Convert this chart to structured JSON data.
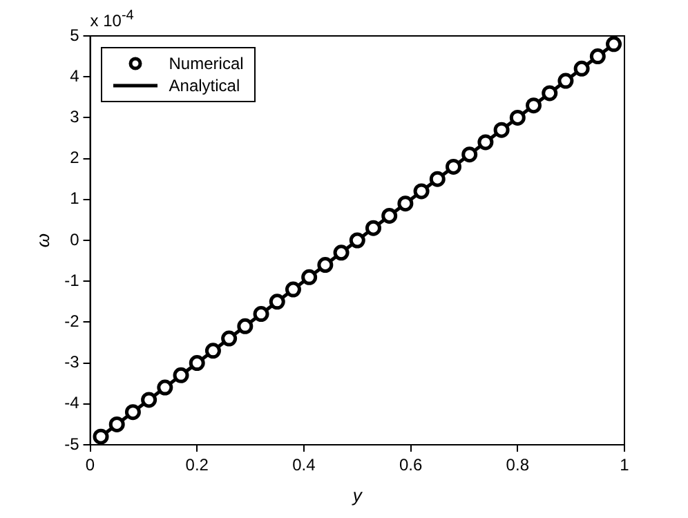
{
  "chart_data": {
    "type": "scatter",
    "xlabel": "y",
    "ylabel": "ω",
    "annotations": [
      "x 10$^{-4}$"
    ],
    "xlim": [
      0,
      1
    ],
    "xticks": [
      0,
      0.2,
      0.4,
      0.6,
      0.8,
      1
    ],
    "ylim": [
      -5,
      5
    ],
    "yticks": [
      -5,
      -4,
      -3,
      -2,
      -1,
      0,
      1,
      2,
      3,
      4,
      5
    ],
    "grid": false,
    "legend": "top left",
    "series": [
      {
        "name": "Numerical",
        "type": "scatter",
        "marker": "circle",
        "color": "#000000",
        "x": [
          0.02,
          0.05,
          0.08,
          0.11,
          0.14,
          0.17,
          0.2,
          0.23,
          0.26,
          0.29,
          0.32,
          0.35,
          0.38,
          0.41,
          0.44,
          0.47,
          0.5,
          0.53,
          0.56,
          0.59,
          0.62,
          0.65,
          0.68,
          0.71,
          0.74,
          0.77,
          0.8,
          0.83,
          0.86,
          0.89,
          0.92,
          0.95,
          0.98
        ],
        "values": [
          -4.8,
          -4.5,
          -4.2,
          -3.9,
          -3.6,
          -3.3,
          -3.0,
          -2.7,
          -2.4,
          -2.1,
          -1.8,
          -1.5,
          -1.2,
          -0.9,
          -0.6,
          -0.3,
          0,
          0.3,
          0.6,
          0.9,
          1.2,
          1.5,
          1.8,
          2.1,
          2.4,
          2.7,
          3.0,
          3.3,
          3.6,
          3.9,
          4.2,
          4.5,
          4.8
        ]
      },
      {
        "name": "Analytical",
        "type": "line",
        "line_style": "solid",
        "marker": "none",
        "color": "#000000",
        "x": [
          0.02,
          0.98
        ],
        "values": [
          -4.8,
          4.8
        ]
      }
    ]
  }
}
